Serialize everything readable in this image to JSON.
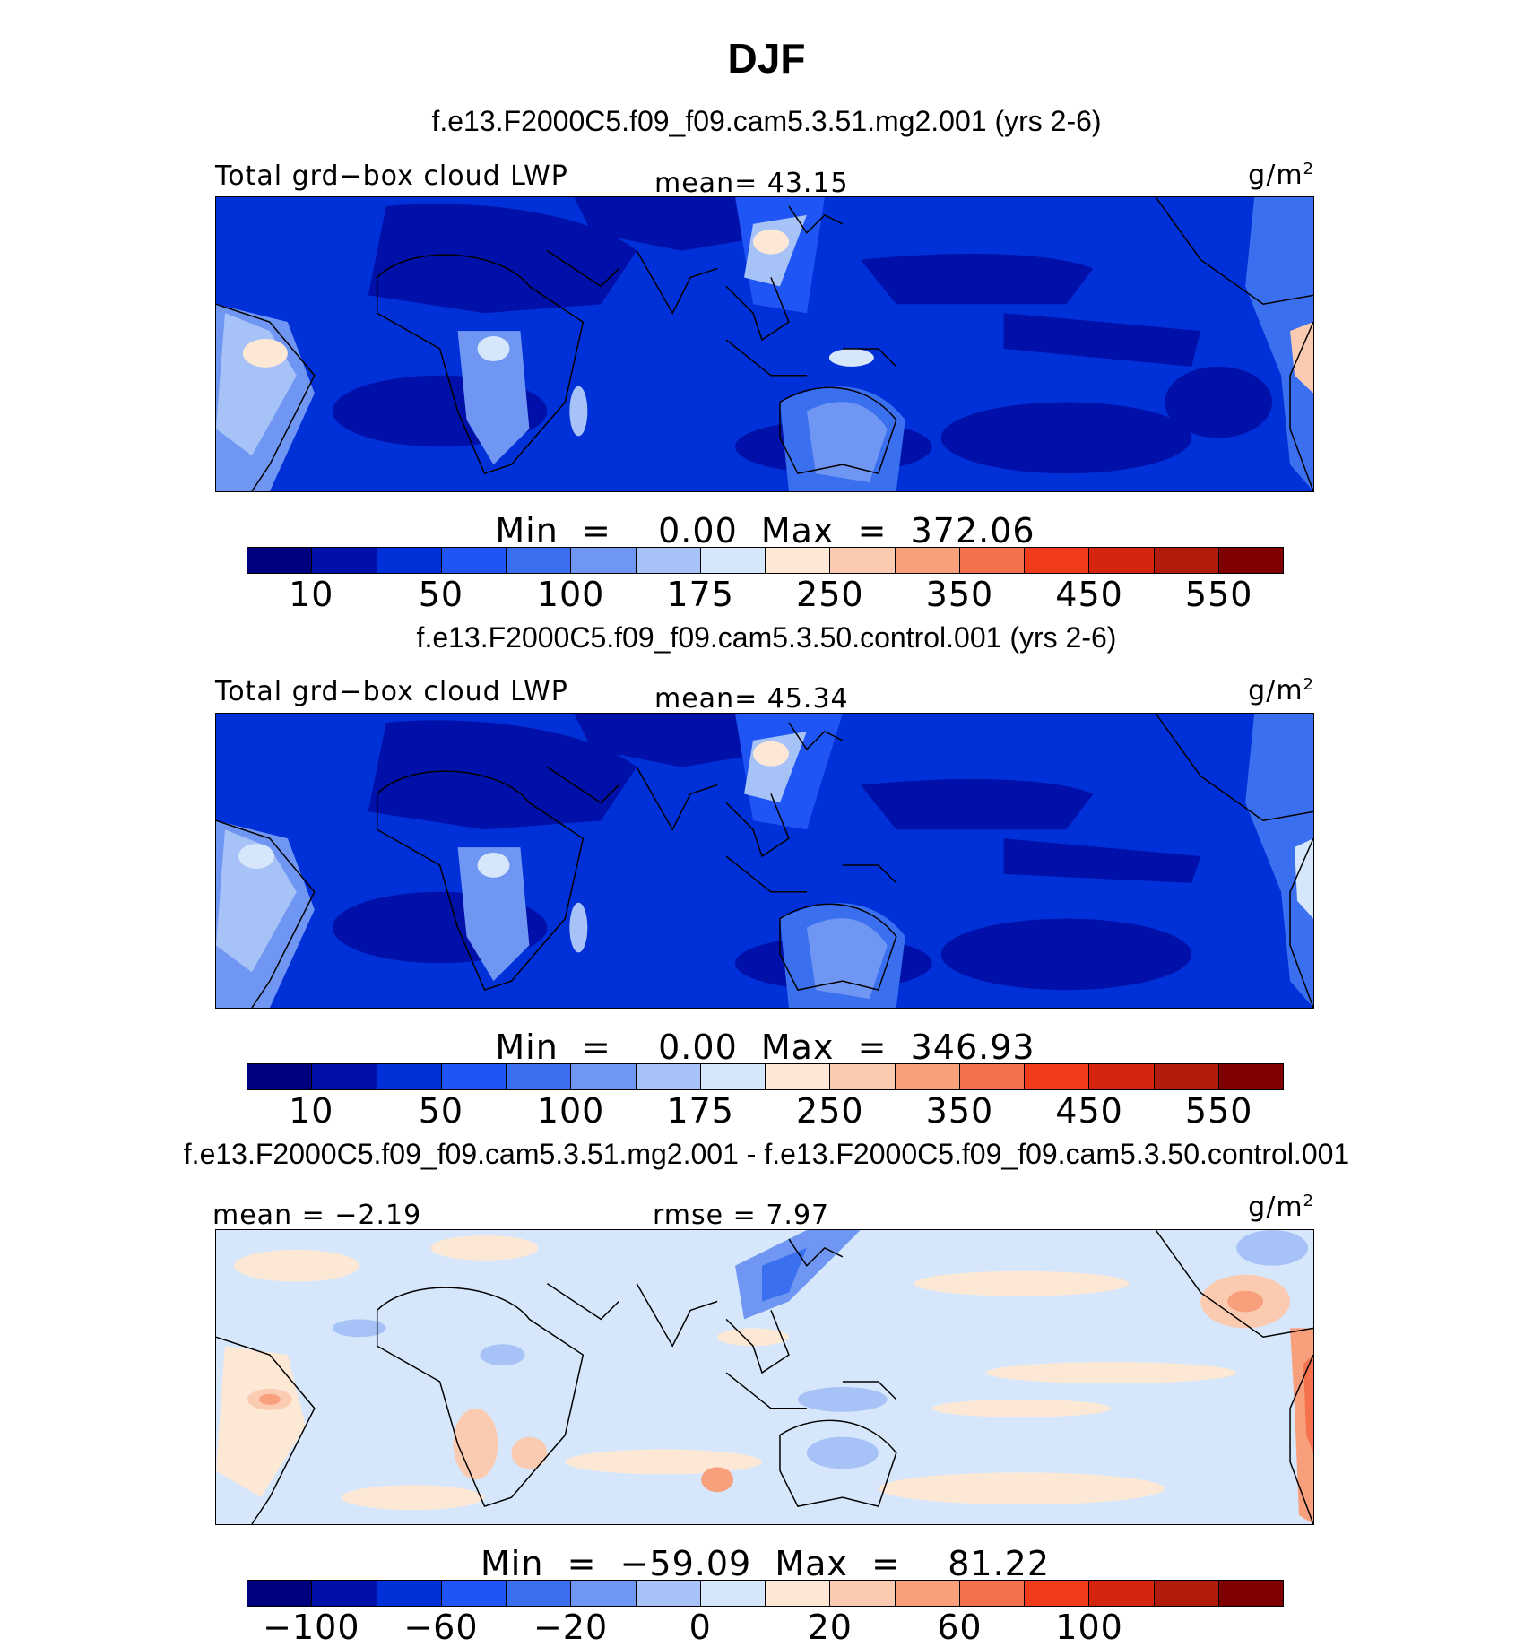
{
  "title": "DJF",
  "colors": {
    "abs": [
      "#00007f",
      "#0010a8",
      "#0030d8",
      "#1f55f5",
      "#3a6fef",
      "#6f96f2",
      "#a7c2f6",
      "#d6e7fb",
      "#fde8d6",
      "#fbcbb1",
      "#f8a07c",
      "#f5714c",
      "#f03b1c",
      "#d4260e",
      "#b01b0b",
      "#7f0000"
    ],
    "diff": [
      "#00007f",
      "#0010a8",
      "#0030d8",
      "#1f55f5",
      "#3a6fef",
      "#6f96f2",
      "#a7c2f6",
      "#d6e7fb",
      "#fde8d6",
      "#fbcbb1",
      "#f8a07c",
      "#f5714c",
      "#f03b1c",
      "#d4260e",
      "#b01b0b",
      "#7f0000"
    ],
    "coast": "#000000"
  },
  "panels": [
    {
      "case": "f.e13.F2000C5.f09_f09.cam5.3.51.mg2.001 (yrs 2-6)",
      "left_label": "Total grd−box cloud LWP",
      "mid_label": "mean=  43.15",
      "units": "g/m",
      "units_sup": "2",
      "minmax": "Min  =    0.00  Max  =  372.06",
      "ticks": [
        "10",
        "50",
        "100",
        "175",
        "250",
        "350",
        "450",
        "550"
      ],
      "kind": "abs"
    },
    {
      "case": "f.e13.F2000C5.f09_f09.cam5.3.50.control.001 (yrs 2-6)",
      "left_label": "Total grd−box cloud LWP",
      "mid_label": "mean=  45.34",
      "units": "g/m",
      "units_sup": "2",
      "minmax": "Min  =    0.00  Max  =  346.93",
      "ticks": [
        "10",
        "50",
        "100",
        "175",
        "250",
        "350",
        "450",
        "550"
      ],
      "kind": "abs"
    },
    {
      "case": "f.e13.F2000C5.f09_f09.cam5.3.51.mg2.001 - f.e13.F2000C5.f09_f09.cam5.3.50.control.001",
      "left_label": "mean  =   −2.19",
      "mid_label": "rmse  =    7.97",
      "units": "g/m",
      "units_sup": "2",
      "minmax": "Min  =  −59.09  Max  =    81.22",
      "ticks": [
        "−100",
        "−60",
        "−20",
        "0",
        "20",
        "60",
        "100"
      ],
      "kind": "diff"
    }
  ]
}
